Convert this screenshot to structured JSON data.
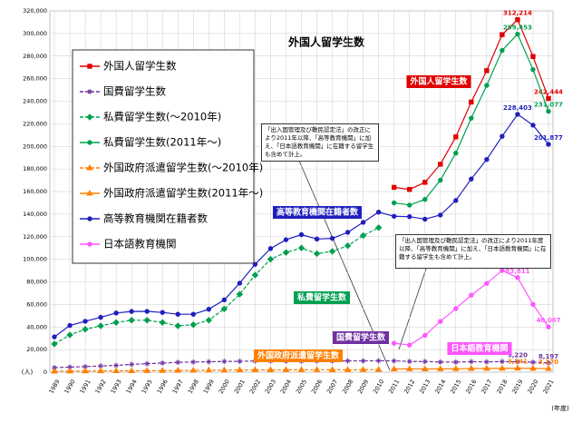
{
  "chart_data": {
    "type": "line",
    "title": "外国人留学生数",
    "y_unit": "(人)",
    "x_label": "(年度)",
    "x": [
      1989,
      1990,
      1991,
      1992,
      1993,
      1994,
      1995,
      1996,
      1997,
      1998,
      1999,
      2000,
      2001,
      2002,
      2003,
      2004,
      2005,
      2006,
      2007,
      2008,
      2009,
      2010,
      2011,
      2012,
      2013,
      2014,
      2015,
      2016,
      2017,
      2018,
      2019,
      2020,
      2021
    ],
    "xlim": [
      1989,
      2021
    ],
    "ylim": [
      0,
      320000
    ],
    "yticks": [
      0,
      {
        "value": 20000,
        "label": "20,000"
      },
      {
        "value": 40000,
        "label": "40,000"
      },
      {
        "value": 60000,
        "label": "60,000"
      },
      {
        "value": 80000,
        "label": "80,000"
      },
      {
        "value": 100000,
        "label": "100,000"
      },
      {
        "value": 120000,
        "label": "120,000"
      },
      {
        "value": 140000,
        "label": "140,000"
      },
      {
        "value": 160000,
        "label": "160,000"
      },
      {
        "value": 180000,
        "label": "180,000"
      },
      {
        "value": 200000,
        "label": "200,000"
      },
      {
        "value": 220000,
        "label": "220,000"
      },
      {
        "value": 240000,
        "label": "240,000"
      },
      {
        "value": 260000,
        "label": "260,000"
      },
      {
        "value": 280000,
        "label": "280,000"
      },
      {
        "value": 300000,
        "label": "300,000"
      },
      {
        "value": 320000,
        "label": "320,000"
      }
    ],
    "grid": true,
    "series": [
      {
        "name": "外国人留学生数",
        "color": "#e00000",
        "dash": false,
        "marker": "square",
        "values": [
          null,
          null,
          null,
          null,
          null,
          null,
          null,
          null,
          null,
          null,
          null,
          null,
          null,
          null,
          null,
          null,
          null,
          null,
          null,
          null,
          null,
          null,
          163697,
          161848,
          168145,
          184155,
          208379,
          239287,
          267042,
          298980,
          312214,
          279597,
          242444
        ],
        "value_labels": [
          null,
          null,
          null,
          null,
          null,
          null,
          null,
          null,
          null,
          null,
          null,
          null,
          null,
          null,
          null,
          null,
          null,
          null,
          null,
          null,
          null,
          null,
          null,
          null,
          null,
          null,
          null,
          null,
          null,
          null,
          "312,214",
          null,
          "242,444"
        ]
      },
      {
        "name": "国費留学生数",
        "color": "#7030a0",
        "dash": true,
        "marker": "star",
        "values": [
          4000,
          4500,
          4900,
          5500,
          6000,
          6900,
          7500,
          8100,
          8700,
          9000,
          9200,
          9500,
          9600,
          9900,
          9900,
          9800,
          9800,
          9900,
          9900,
          10000,
          10000,
          10100,
          10000,
          9500,
          9400,
          9000,
          8900,
          9300,
          9100,
          9400,
          9220,
          8800,
          8197
        ],
        "value_labels": [
          null,
          null,
          null,
          null,
          null,
          null,
          null,
          null,
          null,
          null,
          null,
          null,
          null,
          null,
          null,
          null,
          null,
          null,
          null,
          null,
          null,
          null,
          null,
          null,
          null,
          null,
          null,
          null,
          null,
          null,
          "9,220",
          null,
          "8,197"
        ]
      },
      {
        "name": "私費留学生数(～2010年)",
        "color": "#00a050",
        "dash": true,
        "marker": "diamond",
        "values": [
          25000,
          33000,
          38000,
          41000,
          44000,
          46000,
          46000,
          44000,
          41000,
          42000,
          46000,
          56000,
          69000,
          86000,
          100000,
          106000,
          110000,
          105000,
          107000,
          112000,
          121000,
          128000,
          null,
          null,
          null,
          null,
          null,
          null,
          null,
          null,
          null,
          null,
          null
        ]
      },
      {
        "name": "私費留学生数(2011年～)",
        "color": "#00a050",
        "dash": false,
        "marker": "circle",
        "values": [
          null,
          null,
          null,
          null,
          null,
          null,
          null,
          null,
          null,
          null,
          null,
          null,
          null,
          null,
          null,
          null,
          null,
          null,
          null,
          null,
          null,
          null,
          150000,
          148000,
          153000,
          170000,
          194000,
          225000,
          254000,
          285000,
          299453,
          268000,
          231077
        ],
        "value_labels": [
          null,
          null,
          null,
          null,
          null,
          null,
          null,
          null,
          null,
          null,
          null,
          null,
          null,
          null,
          null,
          null,
          null,
          null,
          null,
          null,
          null,
          null,
          null,
          null,
          null,
          null,
          null,
          null,
          null,
          null,
          "299,453",
          null,
          "231,077"
        ]
      },
      {
        "name": "外国政府派遣留学生数(～2010年)",
        "color": "#ff8000",
        "dash": true,
        "marker": "triangle",
        "values": [
          800,
          900,
          1000,
          1100,
          1200,
          1200,
          1300,
          1400,
          1500,
          1600,
          1700,
          1800,
          1900,
          2000,
          2000,
          2100,
          2100,
          2200,
          2100,
          2100,
          2200,
          2300,
          null,
          null,
          null,
          null,
          null,
          null,
          null,
          null,
          null,
          null,
          null
        ]
      },
      {
        "name": "外国政府派遣留学生数(2011年～)",
        "color": "#ff8000",
        "dash": false,
        "marker": "triangle",
        "values": [
          null,
          null,
          null,
          null,
          null,
          null,
          null,
          null,
          null,
          null,
          null,
          null,
          null,
          null,
          null,
          null,
          null,
          null,
          null,
          null,
          null,
          null,
          2800,
          2900,
          2800,
          2900,
          3000,
          3200,
          3300,
          3400,
          3541,
          3300,
          3170
        ],
        "value_labels": [
          null,
          null,
          null,
          null,
          null,
          null,
          null,
          null,
          null,
          null,
          null,
          null,
          null,
          null,
          null,
          null,
          null,
          null,
          null,
          null,
          null,
          null,
          null,
          null,
          null,
          null,
          null,
          null,
          null,
          null,
          "3,541",
          null,
          "3,170"
        ]
      },
      {
        "name": "高等教育機関在籍者数",
        "color": "#1f1fbf",
        "dash": false,
        "marker": "circle",
        "values": [
          31251,
          41347,
          45066,
          48561,
          52405,
          53787,
          53847,
          52921,
          51298,
          51298,
          55755,
          64011,
          78812,
          95550,
          109508,
          117302,
          121812,
          117927,
          118498,
          123829,
          132720,
          141774,
          138075,
          137756,
          135519,
          139185,
          152062,
          171122,
          188384,
          208901,
          228403,
          218783,
          201877
        ],
        "value_labels": [
          null,
          null,
          null,
          null,
          null,
          null,
          null,
          null,
          null,
          null,
          null,
          null,
          null,
          null,
          null,
          null,
          null,
          null,
          null,
          null,
          null,
          null,
          null,
          null,
          null,
          null,
          null,
          null,
          null,
          null,
          "228,403",
          null,
          "201,877"
        ]
      },
      {
        "name": "日本語教育機関",
        "color": "#ff55ff",
        "dash": false,
        "marker": "circle",
        "values": [
          null,
          null,
          null,
          null,
          null,
          null,
          null,
          null,
          null,
          null,
          null,
          null,
          null,
          null,
          null,
          null,
          null,
          null,
          null,
          null,
          null,
          null,
          25622,
          24092,
          32626,
          44970,
          56317,
          68165,
          78658,
          90079,
          83811,
          60000,
          40067
        ],
        "value_labels": [
          null,
          null,
          null,
          null,
          null,
          null,
          null,
          null,
          null,
          null,
          null,
          null,
          null,
          null,
          null,
          null,
          null,
          null,
          null,
          null,
          null,
          null,
          null,
          null,
          null,
          null,
          null,
          null,
          null,
          null,
          "83,811",
          null,
          "40,067"
        ]
      }
    ],
    "annotations": [
      {
        "text": "外国人留学生数",
        "color": "#e00000"
      },
      {
        "text": "高等教育機関在籍者数",
        "color": "#1f1fbf"
      },
      {
        "text": "私費留学生数",
        "color": "#00a050"
      },
      {
        "text": "国費留学生数",
        "color": "#7030a0"
      },
      {
        "text": "外国政府派遣留学生数",
        "color": "#ff8000"
      },
      {
        "text": "日本語教育機関",
        "color": "#ff55ff"
      }
    ],
    "notes": [
      "「出入国管理及び難民認定法」の改正により2011年以降、「高等教育機関」に加え、「日本語教育機関」に在籍する留学生も含めて計上。",
      "「出入国管理及び難民認定法」の改正により2011年度以降、「高等教育機関」に加え、「日本語教育機関」に在籍する留学生も含めて計上。"
    ]
  }
}
